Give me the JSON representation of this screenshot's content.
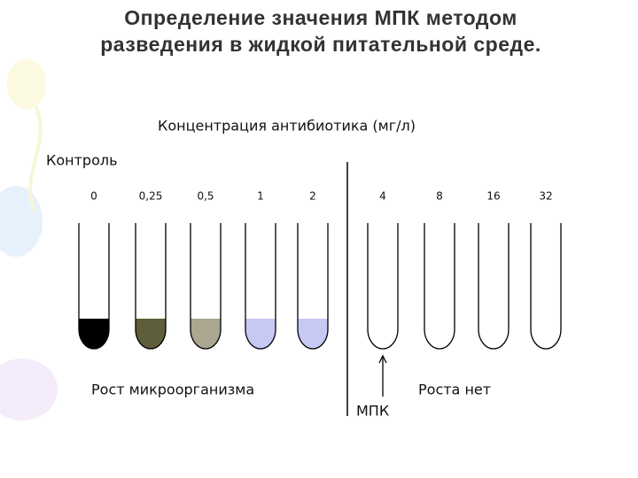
{
  "title_lines": [
    "Определение значения МПК методом",
    "разведения в жидкой питательной среде."
  ],
  "header": "Концентрация антибиотика (мг/л)",
  "control_label": "Контроль",
  "tubes": [
    {
      "label": "0",
      "color": "#000000"
    },
    {
      "label": "0,25",
      "color": "#5e5f3a"
    },
    {
      "label": "0,5",
      "color": "#aaa690"
    },
    {
      "label": "1",
      "color": "#c8c8f4"
    },
    {
      "label": "2",
      "color": "#c8c8f4"
    },
    {
      "label": "4",
      "color": "#ffffff"
    },
    {
      "label": "8",
      "color": "#ffffff"
    },
    {
      "label": "16",
      "color": "#ffffff"
    },
    {
      "label": "32",
      "color": "#ffffff"
    }
  ],
  "growth_label": "Рост микроорганизма",
  "no_growth_label": "Роста нет",
  "mic_label": "МПК"
}
